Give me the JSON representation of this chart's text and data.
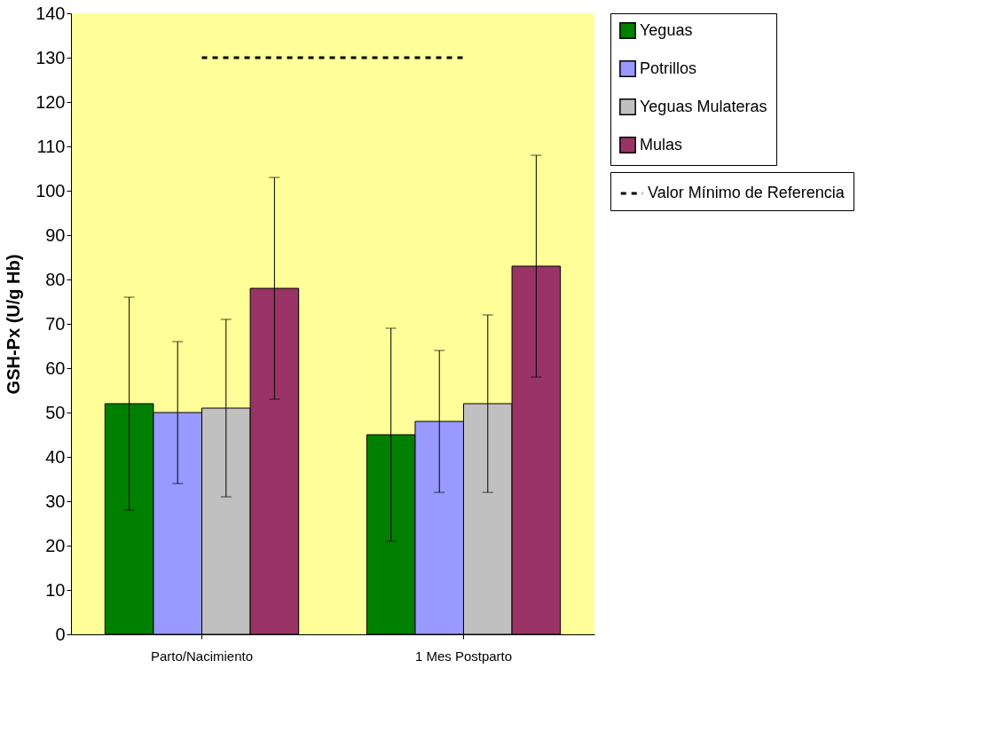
{
  "chart_data": {
    "type": "bar",
    "ylabel": "GSH-Px (U/g Hb)",
    "categories": [
      "Parto/Nacimiento",
      "1 Mes Postparto"
    ],
    "series": [
      {
        "name": "Yeguas",
        "color": "#008000",
        "values": [
          52,
          45
        ],
        "errors": [
          24,
          24
        ]
      },
      {
        "name": "Potrillos",
        "color": "#9999ff",
        "values": [
          50,
          48
        ],
        "errors": [
          16,
          16
        ]
      },
      {
        "name": "Yeguas Mulateras",
        "color": "#c0c0c0",
        "values": [
          51,
          52
        ],
        "errors": [
          20,
          20
        ]
      },
      {
        "name": "Mulas",
        "color": "#993366",
        "values": [
          78,
          83
        ],
        "errors": [
          25,
          25
        ]
      }
    ],
    "ylim": [
      0,
      140
    ],
    "yticks": [
      0,
      10,
      20,
      30,
      40,
      50,
      60,
      70,
      80,
      90,
      100,
      110,
      120,
      130,
      140
    ],
    "ref_lines": [
      {
        "axis": "y",
        "value": 130,
        "label": "Valor Mínimo de Referencia",
        "color": "#000000",
        "line_style": "dashed"
      }
    ],
    "grid": false,
    "legend": "right"
  }
}
